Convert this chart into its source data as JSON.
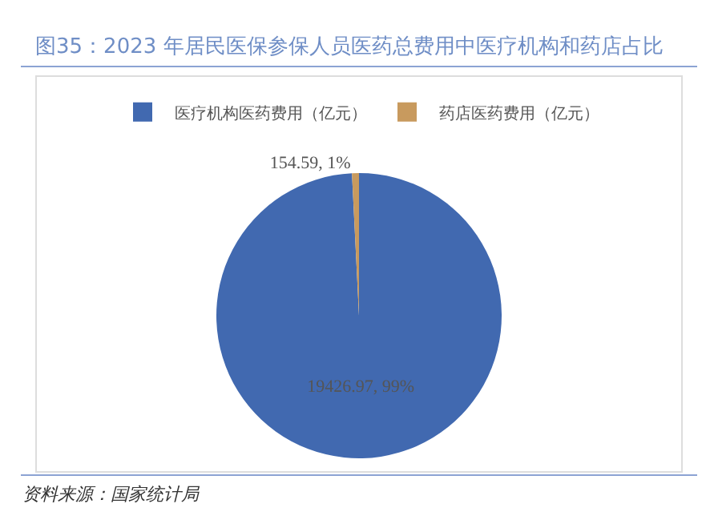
{
  "chart_data": {
    "type": "pie",
    "title": "图35：2023 年居民医保参保人员医药总费用中医疗机构和药店占比",
    "categories": [
      "医疗机构医药费用（亿元）",
      "药店医药费用（亿元）"
    ],
    "values": [
      19426.97,
      154.59
    ],
    "colors": [
      "#4169b0",
      "#c89a5e"
    ],
    "value_labels": [
      "19426.97, 99%",
      "154.59, 1%"
    ],
    "legend": "top",
    "annotations": [
      "资料来源：国家统计局"
    ]
  }
}
